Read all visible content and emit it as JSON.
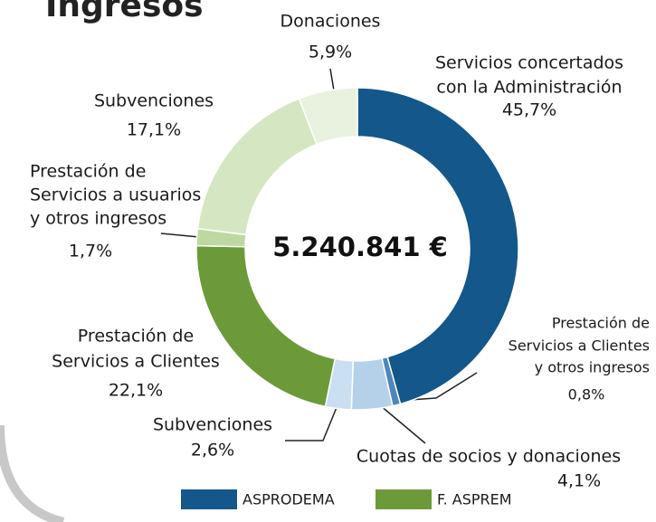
{
  "chart_data": {
    "type": "pie",
    "title": "Ingresos",
    "center_label": "5.240.841 €",
    "categories": [
      [
        "Servicios concertados",
        "con la Administración"
      ],
      [
        "Prestación de",
        "Servicios a Clientes",
        "y otros ingresos"
      ],
      [
        "Cuotas de socios y donaciones"
      ],
      [
        "Subvenciones"
      ],
      [
        "Prestación de",
        "Servicios a Clientes"
      ],
      [
        "Prestación de",
        "Servicios a usuarios",
        "y otros ingresos"
      ],
      [
        "Subvenciones"
      ],
      [
        "Donaciones"
      ]
    ],
    "values": [
      45.7,
      0.8,
      4.1,
      2.6,
      22.1,
      1.7,
      17.1,
      5.9
    ],
    "value_labels": [
      "45,7%",
      "0,8%",
      "4,1%",
      "2,6%",
      "22,1%",
      "1,7%",
      "17,1%",
      "5,9%"
    ],
    "colors": [
      "#14578a",
      "#4f86bb",
      "#b5d1ea",
      "#cadff1",
      "#6d9a38",
      "#bdd8a1",
      "#d5e6c2",
      "#e9f1df"
    ],
    "legend": [
      {
        "name": "ASPRODEMA",
        "color": "#14578a"
      },
      {
        "name": "F. ASPREM",
        "color": "#6d9a38"
      }
    ]
  }
}
